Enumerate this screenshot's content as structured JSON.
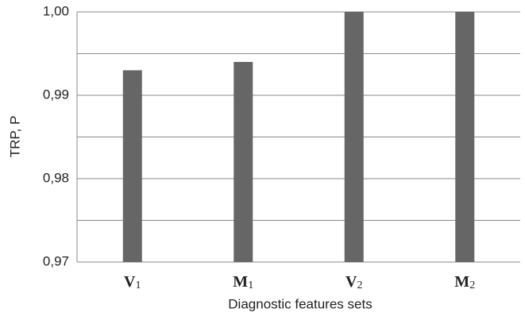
{
  "chart_data": {
    "type": "bar",
    "y_label": "TRP, P",
    "x_label": "Diagnostic features sets",
    "categories": [
      {
        "base": "V",
        "sub": "1"
      },
      {
        "base": "M",
        "sub": "1"
      },
      {
        "base": "V",
        "sub": "2"
      },
      {
        "base": "M",
        "sub": "2"
      }
    ],
    "values": [
      0.993,
      0.994,
      1.0,
      1.0
    ],
    "color": "#666666",
    "ylim": [
      0.97,
      1.0
    ],
    "yticks": [
      {
        "value": 0.97,
        "label": "0,97"
      },
      {
        "value": 0.98,
        "label": "0,98"
      },
      {
        "value": 0.99,
        "label": "0,99"
      },
      {
        "value": 1.0,
        "label": "1,00"
      }
    ],
    "minor_yticks": [
      0.975,
      0.985,
      0.995
    ],
    "grid": true
  }
}
